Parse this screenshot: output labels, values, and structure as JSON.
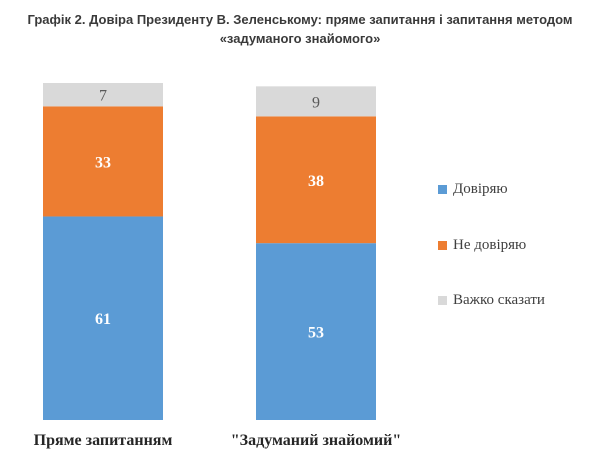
{
  "title_line1": "Графік 2. Довіра Президенту В. Зеленському: пряме запитання і запитання методом",
  "title_line2": "«задуманого знайомого»",
  "chart_data": {
    "type": "bar",
    "stacked": true,
    "categories": [
      "Пряме запитанням",
      "\"Задуманий знайомий\""
    ],
    "series": [
      {
        "name": "Довіряю",
        "values": [
          61,
          53
        ],
        "color": "#5b9bd5",
        "label_color": "#ffffff"
      },
      {
        "name": "Не довіряю",
        "values": [
          33,
          38
        ],
        "color": "#ed7d31",
        "label_color": "#ffffff"
      },
      {
        "name": "Важко сказати",
        "values": [
          7,
          9
        ],
        "color": "#d9d9d9",
        "label_color": "#595959"
      }
    ],
    "ylim": [
      0,
      101
    ],
    "grid": false,
    "legend_position": "right"
  }
}
